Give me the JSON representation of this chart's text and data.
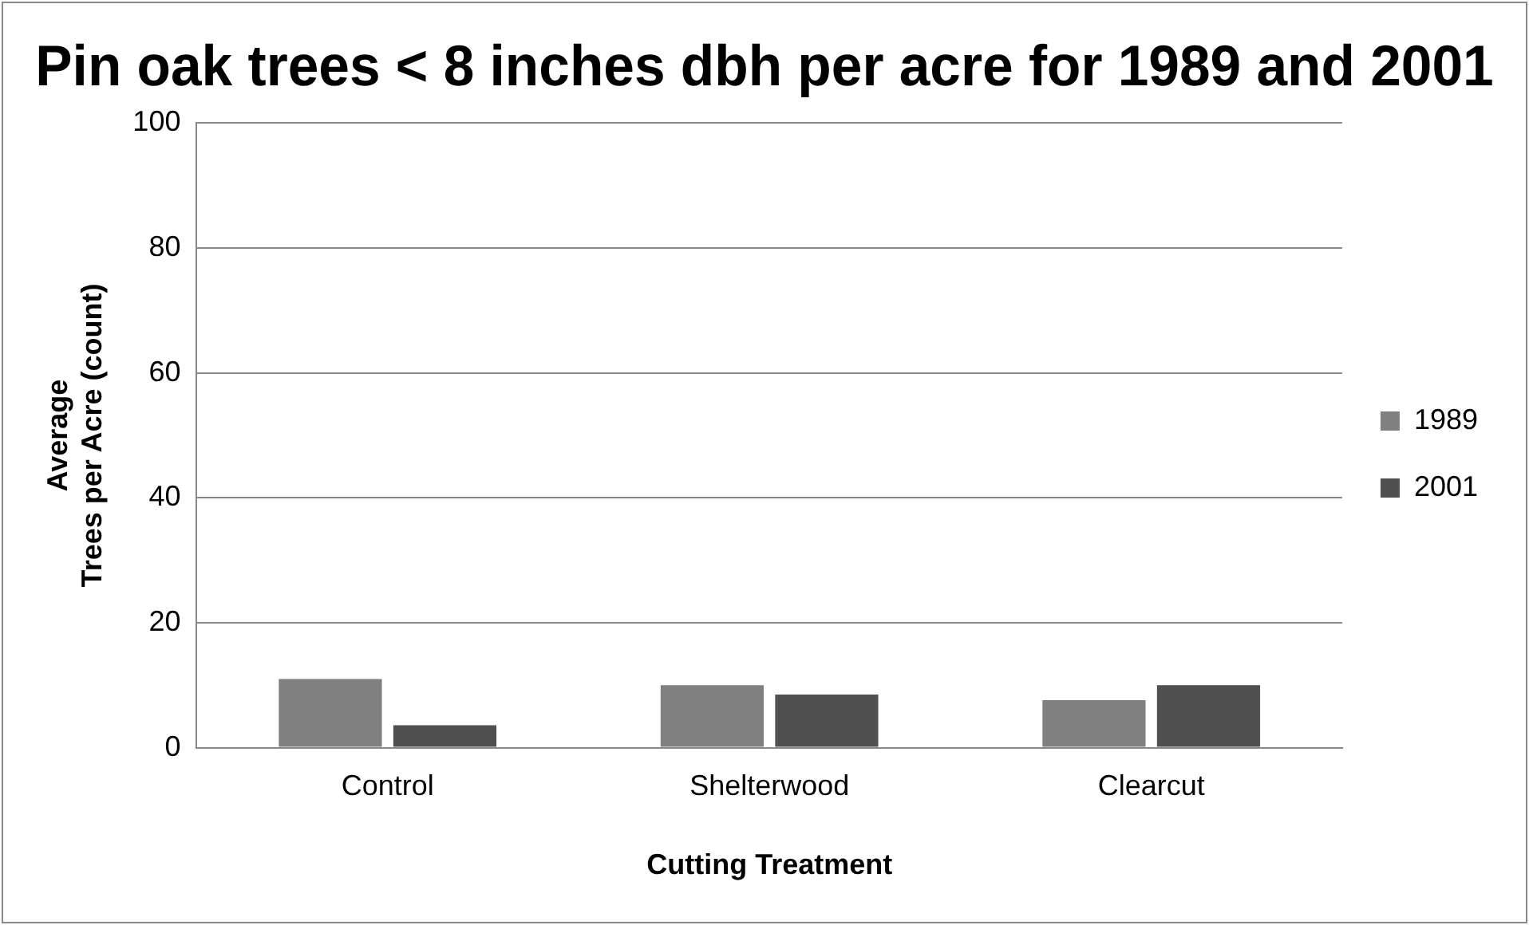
{
  "chart_data": {
    "type": "bar",
    "title": "Pin oak trees < 8 inches dbh per acre for 1989 and 2001",
    "xlabel": "Cutting Treatment",
    "ylabel": "Average\nTrees per Acre (count)",
    "categories": [
      "Control",
      "Shelterwood",
      "Clearcut"
    ],
    "series": [
      {
        "name": "1989",
        "color": "#808080",
        "values": [
          11,
          10,
          7.6
        ]
      },
      {
        "name": "2001",
        "color": "#505050",
        "values": [
          3.6,
          8.5,
          10
        ]
      }
    ],
    "ylim": [
      0,
      100
    ],
    "yticks": [
      0,
      20,
      40,
      60,
      80,
      100
    ],
    "grid": "y",
    "legend": "right"
  }
}
